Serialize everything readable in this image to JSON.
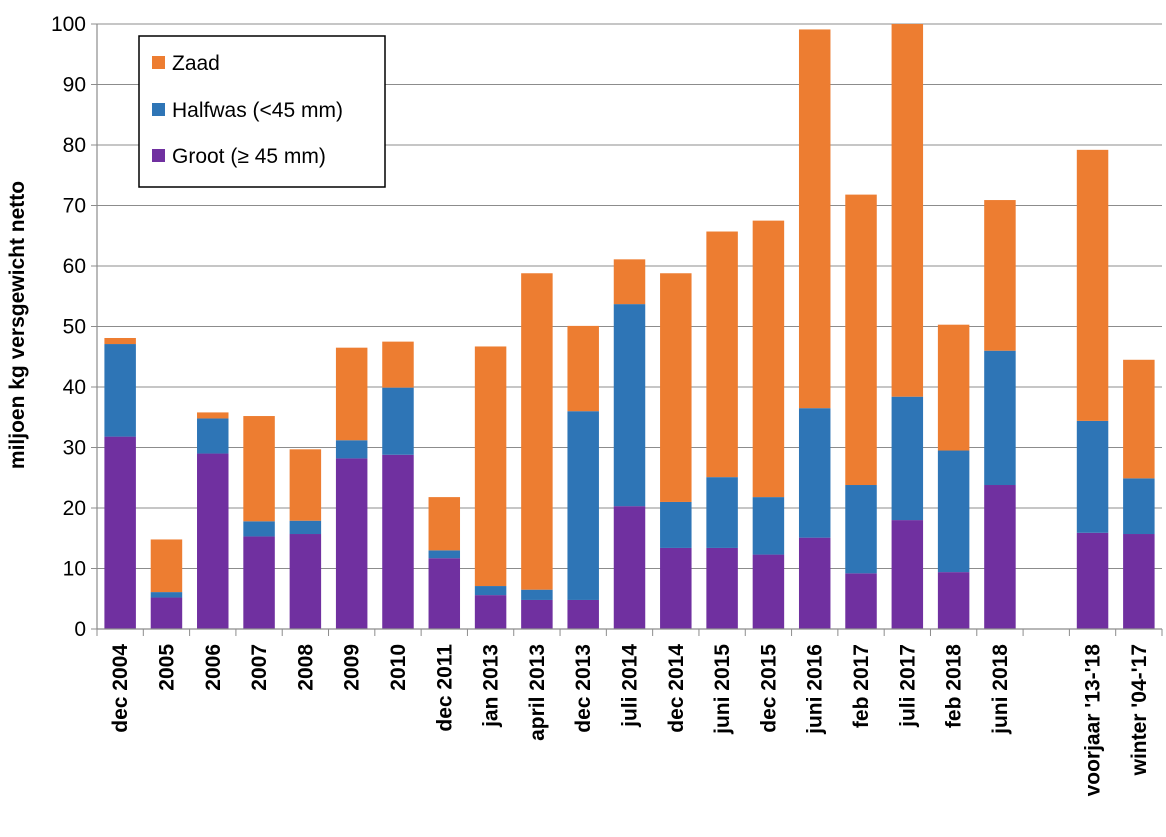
{
  "chart_data": {
    "type": "bar",
    "stacked": true,
    "ylabel": "miljoen kg versgewicht netto",
    "xlabel": "",
    "ylim": [
      0,
      100
    ],
    "yticks": [
      0,
      10,
      20,
      30,
      40,
      50,
      60,
      70,
      80,
      90,
      100
    ],
    "grid": "horizontal",
    "legend_position": "top-left",
    "categories": [
      "dec 2004",
      "2005",
      "2006",
      "2007",
      "2008",
      "2009",
      "2010",
      "dec 2011",
      "jan 2013",
      "april 2013",
      "dec 2013",
      "juli 2014",
      "dec 2014",
      "juni 2015",
      "dec 2015",
      "juni 2016",
      "feb 2017",
      "juli 2017",
      "feb 2018",
      "juni 2018",
      "",
      "voorjaar '13-'18",
      "winter '04-'17"
    ],
    "series": [
      {
        "name": "Groot (≥ 45 mm)",
        "color": "#7030A0",
        "values": [
          31.8,
          5.2,
          29.0,
          15.3,
          15.7,
          28.2,
          28.8,
          11.7,
          5.6,
          4.8,
          4.8,
          20.3,
          13.4,
          13.4,
          12.3,
          15.1,
          9.2,
          18.0,
          9.4,
          23.8,
          null,
          15.9,
          15.7
        ]
      },
      {
        "name": "Halfwas (<45 mm)",
        "color": "#2E75B6",
        "values": [
          15.3,
          0.9,
          5.8,
          2.5,
          2.2,
          3.0,
          11.1,
          1.3,
          1.5,
          1.7,
          31.2,
          33.4,
          7.6,
          11.7,
          9.5,
          21.4,
          14.6,
          20.4,
          20.1,
          22.2,
          null,
          18.5,
          9.2
        ]
      },
      {
        "name": "Zaad",
        "color": "#ED7D31",
        "values": [
          1.0,
          8.7,
          1.0,
          17.4,
          11.8,
          15.3,
          7.6,
          8.8,
          39.6,
          52.3,
          14.1,
          7.4,
          37.8,
          40.6,
          45.7,
          62.6,
          48.0,
          61.6,
          20.8,
          24.9,
          null,
          44.8,
          19.6
        ]
      }
    ],
    "legend": [
      {
        "label": "Zaad",
        "color": "#ED7D31"
      },
      {
        "label": "Halfwas (<45 mm)",
        "color": "#2E75B6"
      },
      {
        "label": "Groot (≥ 45 mm)",
        "color": "#7030A0"
      }
    ]
  }
}
